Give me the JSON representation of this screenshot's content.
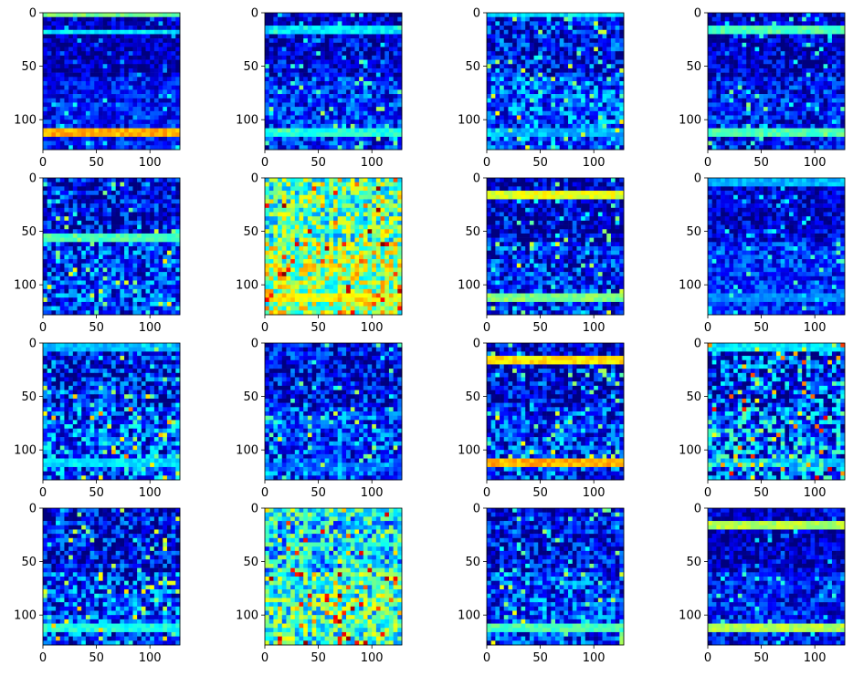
{
  "chart_data": {
    "type": "heatmap",
    "layout": "4x4 grid of feature-map images",
    "colormap": "jet",
    "colormap_stops": [
      "#00007f",
      "#0000ff",
      "#007fff",
      "#00ffff",
      "#7fff7f",
      "#ffff00",
      "#ff7f00",
      "#ff0000",
      "#7f0000"
    ],
    "image_shape": [
      128,
      128
    ],
    "grid": false,
    "x_ticks": [
      0,
      50,
      100
    ],
    "y_ticks": [
      0,
      50,
      100
    ],
    "xlim": [
      0,
      128
    ],
    "ylim": [
      128,
      0
    ],
    "panels": [
      {
        "id": 1,
        "background_level": 0.05,
        "noise_level": 0.18,
        "horizontal_bands": [
          {
            "y": 1,
            "level": 0.5
          },
          {
            "y": 18,
            "level": 0.35
          },
          {
            "y": 113,
            "level": 0.7
          }
        ]
      },
      {
        "id": 2,
        "background_level": 0.08,
        "noise_level": 0.25,
        "horizontal_bands": [
          {
            "y": 16,
            "level": 0.35
          },
          {
            "y": 113,
            "level": 0.4
          }
        ]
      },
      {
        "id": 3,
        "background_level": 0.12,
        "noise_level": 0.3,
        "horizontal_bands": [
          {
            "y": 2,
            "level": 0.35
          },
          {
            "y": 113,
            "level": 0.3
          }
        ]
      },
      {
        "id": 4,
        "background_level": 0.05,
        "noise_level": 0.25,
        "horizontal_bands": [
          {
            "y": 16,
            "level": 0.45
          },
          {
            "y": 113,
            "level": 0.45
          }
        ]
      },
      {
        "id": 5,
        "background_level": 0.1,
        "noise_level": 0.3,
        "horizontal_bands": [
          {
            "y": 55,
            "level": 0.45
          }
        ]
      },
      {
        "id": 6,
        "background_level": 0.45,
        "noise_level": 0.35,
        "horizontal_bands": [
          {
            "y": 4,
            "level": 0.3
          },
          {
            "y": 113,
            "level": 0.6
          }
        ]
      },
      {
        "id": 7,
        "background_level": 0.06,
        "noise_level": 0.3,
        "horizontal_bands": [
          {
            "y": 16,
            "level": 0.6
          },
          {
            "y": 113,
            "level": 0.5
          }
        ]
      },
      {
        "id": 8,
        "background_level": 0.08,
        "noise_level": 0.2,
        "horizontal_bands": [
          {
            "y": 5,
            "level": 0.3
          },
          {
            "y": 113,
            "level": 0.25
          }
        ]
      },
      {
        "id": 9,
        "background_level": 0.12,
        "noise_level": 0.35,
        "horizontal_bands": [
          {
            "y": 5,
            "level": 0.3
          },
          {
            "y": 113,
            "level": 0.35
          }
        ]
      },
      {
        "id": 10,
        "background_level": 0.1,
        "noise_level": 0.28,
        "horizontal_bands": [
          {
            "y": 115,
            "level": 0.2
          }
        ]
      },
      {
        "id": 11,
        "background_level": 0.08,
        "noise_level": 0.3,
        "horizontal_bands": [
          {
            "y": 15,
            "level": 0.65
          },
          {
            "y": 112,
            "level": 0.7
          }
        ]
      },
      {
        "id": 12,
        "background_level": 0.15,
        "noise_level": 0.42,
        "horizontal_bands": [
          {
            "y": 5,
            "level": 0.35
          },
          {
            "y": 112,
            "level": 0.3
          }
        ]
      },
      {
        "id": 13,
        "background_level": 0.1,
        "noise_level": 0.32,
        "horizontal_bands": [
          {
            "y": 112,
            "level": 0.4
          }
        ]
      },
      {
        "id": 14,
        "background_level": 0.35,
        "noise_level": 0.35,
        "horizontal_bands": [
          {
            "y": 5,
            "level": 0.3
          },
          {
            "y": 113,
            "level": 0.3
          }
        ]
      },
      {
        "id": 15,
        "background_level": 0.1,
        "noise_level": 0.28,
        "horizontal_bands": [
          {
            "y": 112,
            "level": 0.45
          }
        ]
      },
      {
        "id": 16,
        "background_level": 0.05,
        "noise_level": 0.22,
        "horizontal_bands": [
          {
            "y": 15,
            "level": 0.55
          },
          {
            "y": 112,
            "level": 0.55
          }
        ]
      }
    ]
  }
}
